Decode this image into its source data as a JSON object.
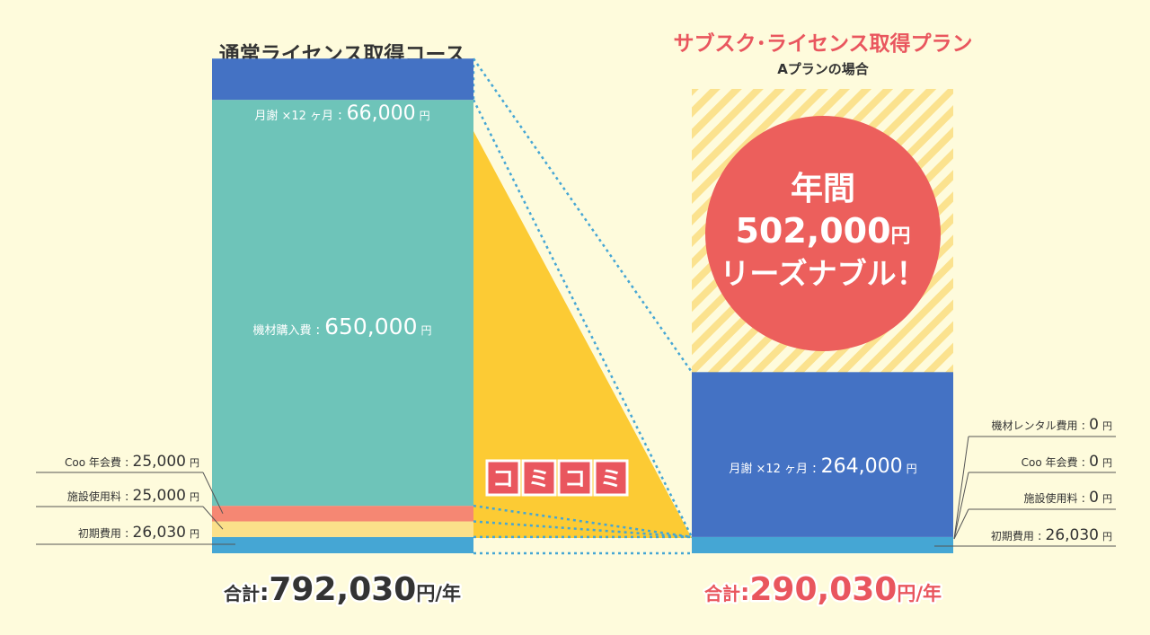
{
  "colors": {
    "background": "#fefbdc",
    "monthly_fee": "#4472c4",
    "equipment": "#6ec4b9",
    "membership": "#f58773",
    "facility": "#fbe08a",
    "initial": "#45a6d4",
    "wedge": "#fccb34",
    "komikomi": "#e9565e",
    "circle": "#ec5f5c",
    "stripe": "#fbe28e",
    "accent_text": "#e9565e",
    "dark_text": "#333333",
    "guide_line": "#45a6d4"
  },
  "chart_data": [
    {
      "type": "bar",
      "stacked": true,
      "title": "通常ライセンス取得コース",
      "unit": "円",
      "segments": [
        {
          "key": "initial",
          "label": "初期費用",
          "value": 26030,
          "value_text": "26,030",
          "color": "#45a6d4"
        },
        {
          "key": "facility",
          "label": "施設使用料",
          "value": 25000,
          "value_text": "25,000",
          "color": "#fbe08a"
        },
        {
          "key": "membership",
          "label": "Coo 年会費",
          "value": 25000,
          "value_text": "25,000",
          "color": "#f58773"
        },
        {
          "key": "equipment",
          "label": "機材購入費",
          "value": 650000,
          "value_text": "650,000",
          "color": "#6ec4b9"
        },
        {
          "key": "monthly",
          "label": "月謝 ×12 ヶ月",
          "value": 66000,
          "value_text": "66,000",
          "color": "#4472c4"
        }
      ],
      "total_label": "合計",
      "total_value": 792030,
      "total_text": "792,030",
      "total_suffix": "/年"
    },
    {
      "type": "bar",
      "stacked": true,
      "title": "サブスク･ライセンス取得プラン",
      "subtitle": "Aプランの場合",
      "unit": "円",
      "segments": [
        {
          "key": "initial",
          "label": "初期費用",
          "value": 26030,
          "value_text": "26,030",
          "color": "#45a6d4"
        },
        {
          "key": "facility",
          "label": "施設使用料",
          "value": 0,
          "value_text": "0",
          "color": "#fbe08a"
        },
        {
          "key": "membership",
          "label": "Coo 年会費",
          "value": 0,
          "value_text": "0",
          "color": "#f58773"
        },
        {
          "key": "equipment",
          "label": "機材レンタル費用",
          "value": 0,
          "value_text": "0",
          "color": "#6ec4b9"
        },
        {
          "key": "monthly",
          "label": "月謝 ×12 ヶ月",
          "value": 264000,
          "value_text": "264,000",
          "color": "#4472c4"
        }
      ],
      "total_label": "合計",
      "total_value": 290030,
      "total_text": "290,030",
      "total_suffix": "/年"
    }
  ],
  "komikomi": [
    "コ",
    "ミ",
    "コ",
    "ミ"
  ],
  "savings": {
    "line1": "年間",
    "amount": "502,000",
    "unit": "円",
    "line3": "リーズナブル！"
  }
}
